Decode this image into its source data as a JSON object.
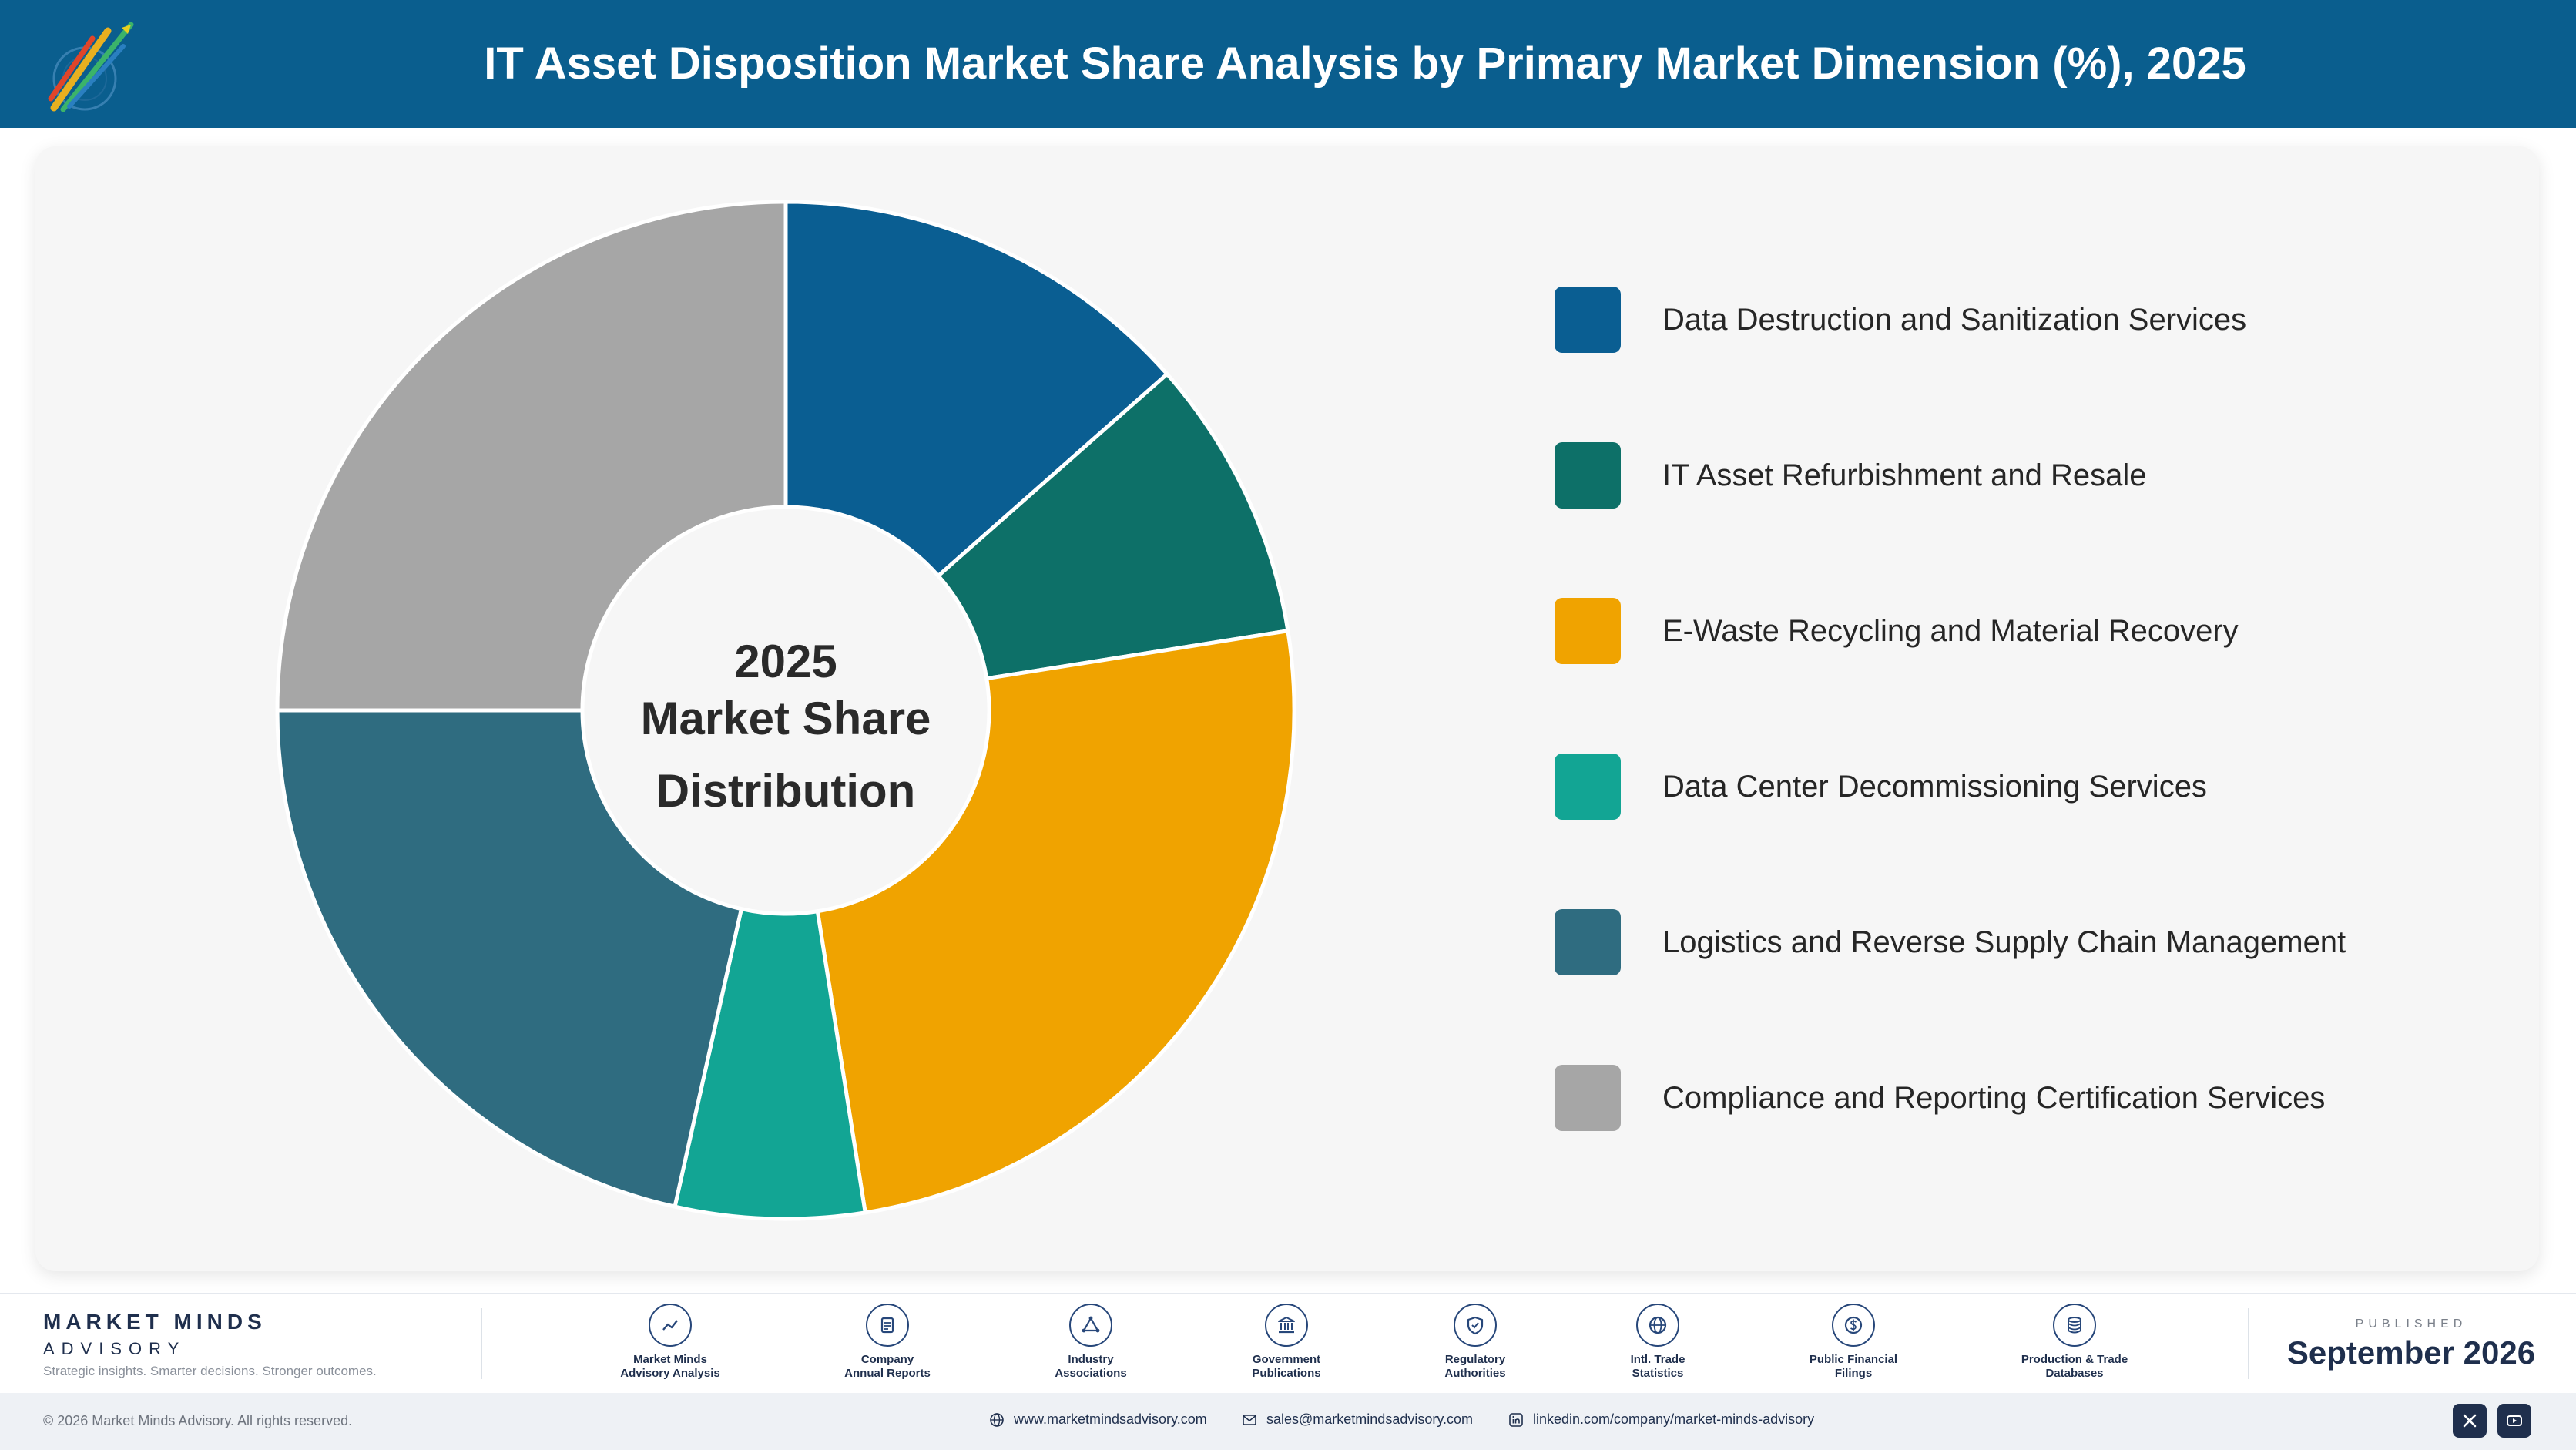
{
  "header": {
    "title": "IT Asset Disposition Market Share Analysis by Primary Market Dimension (%), 2025"
  },
  "chart_data": {
    "type": "pie",
    "donut": true,
    "center_label": [
      "2025",
      "Market Share",
      "Distribution"
    ],
    "legend_position": "right",
    "slices": [
      {
        "name": "Data Destruction and Sanitization Services",
        "value": 13.5,
        "color": "#0a5e92"
      },
      {
        "name": "IT Asset Refurbishment and Resale",
        "value": 9.0,
        "color": "#0d7068"
      },
      {
        "name": "E-Waste Recycling and Material Recovery",
        "value": 25.0,
        "color": "#f0a300"
      },
      {
        "name": "Data Center Decommissioning Services",
        "value": 6.0,
        "color": "#12a594"
      },
      {
        "name": "Logistics and Reverse Supply Chain Management",
        "value": 21.5,
        "color": "#2f6c80"
      },
      {
        "name": "Compliance and Reporting Certification Services",
        "value": 25.0,
        "color": "#a6a6a6"
      }
    ]
  },
  "footer": {
    "brand": {
      "name": "MARKET MINDS",
      "sub": "ADVISORY",
      "tagline": "Strategic insights. Smarter decisions. Stronger outcomes."
    },
    "sources": [
      {
        "icon": "analytics-icon",
        "line1": "Market Minds",
        "line2": "Advisory Analysis"
      },
      {
        "icon": "document-icon",
        "line1": "Company",
        "line2": "Annual Reports"
      },
      {
        "icon": "network-icon",
        "line1": "Industry",
        "line2": "Associations"
      },
      {
        "icon": "building-icon",
        "line1": "Government",
        "line2": "Publications"
      },
      {
        "icon": "shield-icon",
        "line1": "Regulatory",
        "line2": "Authorities"
      },
      {
        "icon": "globe-icon",
        "line1": "Intl. Trade",
        "line2": "Statistics"
      },
      {
        "icon": "dollar-icon",
        "line1": "Public Financial",
        "line2": "Filings"
      },
      {
        "icon": "database-icon",
        "line1": "Production & Trade",
        "line2": "Databases"
      }
    ],
    "published_caption": "PUBLISHED",
    "published_date": "September 2026",
    "copyright": "© 2026 Market Minds Advisory. All rights reserved.",
    "website": "www.marketmindsadvisory.com",
    "email": "sales@marketmindsadvisory.com",
    "linkedin": "linkedin.com/company/market-minds-advisory"
  }
}
